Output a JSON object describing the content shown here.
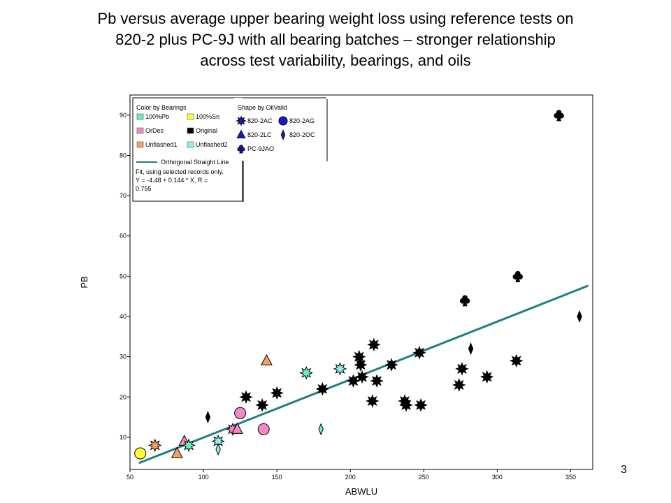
{
  "slide": {
    "title_lines": [
      "Pb versus average upper bearing weight loss using reference tests on",
      "820-2 plus PC-9J with all bearing batches – stronger relationship",
      "across test variability, bearings, and oils"
    ],
    "page_number": "3"
  },
  "chart_data": {
    "type": "scatter",
    "xlabel": "ABWLU",
    "ylabel": "PB",
    "xlim": [
      50,
      365
    ],
    "ylim": [
      2,
      95
    ],
    "x_ticks": [
      50,
      100,
      150,
      200,
      250,
      300,
      350
    ],
    "y_ticks": [
      10,
      20,
      30,
      40,
      50,
      60,
      70,
      80,
      90
    ],
    "grid": false,
    "legend_position": "top-left",
    "legend": {
      "color_title": "Color by Bearings",
      "colors": [
        {
          "name": "100%Pb",
          "color": "#66f0b8"
        },
        {
          "name": "100%Sn",
          "color": "#ffff33"
        },
        {
          "name": "OrDes",
          "color": "#f58ac0"
        },
        {
          "name": "Original",
          "color": "#000000"
        },
        {
          "name": "Unflashed1",
          "color": "#f5a060"
        },
        {
          "name": "Unflashed2",
          "color": "#8ef0f0"
        }
      ],
      "shape_title": "Shape by OilValid",
      "shapes": [
        {
          "name": "820-2AC",
          "shape": "star"
        },
        {
          "name": "820-2AG",
          "shape": "circle"
        },
        {
          "name": "820-2LC",
          "shape": "triangle"
        },
        {
          "name": "820-2OC",
          "shape": "diamond"
        },
        {
          "name": "PC-9JAO",
          "shape": "club"
        }
      ],
      "shape_color": "#1a1acd",
      "fit_label": "Orthogonal Straight Line",
      "fit_note_lines": [
        "Fit, using selected records only.",
        "Y = -4.48 + 0.144 * X, R =",
        "0.755"
      ]
    },
    "fit": {
      "intercept": -4.48,
      "slope": 0.144,
      "r": 0.755,
      "x_range": [
        56,
        362
      ],
      "color": "#1f7f84"
    },
    "points": [
      {
        "x": 57,
        "y": 6,
        "bearing": "100%Sn",
        "oil": "820-2AG"
      },
      {
        "x": 67,
        "y": 8,
        "bearing": "Unflashed1",
        "oil": "820-2AC"
      },
      {
        "x": 82,
        "y": 6,
        "bearing": "Unflashed1",
        "oil": "820-2LC"
      },
      {
        "x": 87,
        "y": 9,
        "bearing": "OrDes",
        "oil": "820-2LC"
      },
      {
        "x": 90,
        "y": 8,
        "bearing": "100%Pb",
        "oil": "820-2AC"
      },
      {
        "x": 103,
        "y": 15,
        "bearing": "Original",
        "oil": "820-2OC"
      },
      {
        "x": 110,
        "y": 9,
        "bearing": "Unflashed2",
        "oil": "820-2AC"
      },
      {
        "x": 110,
        "y": 7,
        "bearing": "Unflashed2",
        "oil": "820-2OC"
      },
      {
        "x": 120,
        "y": 12,
        "bearing": "OrDes",
        "oil": "820-2AC"
      },
      {
        "x": 123,
        "y": 12,
        "bearing": "OrDes",
        "oil": "820-2LC"
      },
      {
        "x": 125,
        "y": 16,
        "bearing": "OrDes",
        "oil": "820-2AG"
      },
      {
        "x": 129,
        "y": 20,
        "bearing": "Original",
        "oil": "820-2AC"
      },
      {
        "x": 140,
        "y": 18,
        "bearing": "Original",
        "oil": "820-2AC"
      },
      {
        "x": 141,
        "y": 12,
        "bearing": "OrDes",
        "oil": "820-2AG"
      },
      {
        "x": 143,
        "y": 29,
        "bearing": "Unflashed1",
        "oil": "820-2LC"
      },
      {
        "x": 150,
        "y": 21,
        "bearing": "Original",
        "oil": "820-2AC"
      },
      {
        "x": 170,
        "y": 26,
        "bearing": "100%Pb",
        "oil": "820-2AC"
      },
      {
        "x": 180,
        "y": 12,
        "bearing": "100%Pb",
        "oil": "820-2OC"
      },
      {
        "x": 181,
        "y": 22,
        "bearing": "Original",
        "oil": "820-2AC"
      },
      {
        "x": 193,
        "y": 27,
        "bearing": "Unflashed2",
        "oil": "820-2AC"
      },
      {
        "x": 202,
        "y": 24,
        "bearing": "Original",
        "oil": "820-2AC"
      },
      {
        "x": 206,
        "y": 30,
        "bearing": "Original",
        "oil": "820-2AC"
      },
      {
        "x": 207,
        "y": 28,
        "bearing": "Original",
        "oil": "820-2AC"
      },
      {
        "x": 208,
        "y": 25,
        "bearing": "Original",
        "oil": "820-2AC"
      },
      {
        "x": 215,
        "y": 19,
        "bearing": "Original",
        "oil": "820-2AC"
      },
      {
        "x": 216,
        "y": 33,
        "bearing": "Original",
        "oil": "820-2AC"
      },
      {
        "x": 218,
        "y": 24,
        "bearing": "Original",
        "oil": "820-2AC"
      },
      {
        "x": 228,
        "y": 28,
        "bearing": "Original",
        "oil": "820-2AC"
      },
      {
        "x": 237,
        "y": 19,
        "bearing": "Original",
        "oil": "820-2AC"
      },
      {
        "x": 238,
        "y": 18,
        "bearing": "Original",
        "oil": "820-2AC"
      },
      {
        "x": 247,
        "y": 31,
        "bearing": "Original",
        "oil": "820-2AC"
      },
      {
        "x": 248,
        "y": 18,
        "bearing": "Original",
        "oil": "820-2AC"
      },
      {
        "x": 274,
        "y": 23,
        "bearing": "Original",
        "oil": "820-2AC"
      },
      {
        "x": 276,
        "y": 27,
        "bearing": "Original",
        "oil": "820-2AC"
      },
      {
        "x": 278,
        "y": 44,
        "bearing": "Original",
        "oil": "PC-9JAO"
      },
      {
        "x": 282,
        "y": 32,
        "bearing": "Original",
        "oil": "820-2OC"
      },
      {
        "x": 293,
        "y": 25,
        "bearing": "Original",
        "oil": "820-2AC"
      },
      {
        "x": 313,
        "y": 29,
        "bearing": "Original",
        "oil": "820-2AC"
      },
      {
        "x": 314,
        "y": 50,
        "bearing": "Original",
        "oil": "PC-9JAO"
      },
      {
        "x": 342,
        "y": 90,
        "bearing": "Original",
        "oil": "PC-9JAO"
      },
      {
        "x": 356,
        "y": 40,
        "bearing": "Original",
        "oil": "820-2OC"
      }
    ]
  }
}
